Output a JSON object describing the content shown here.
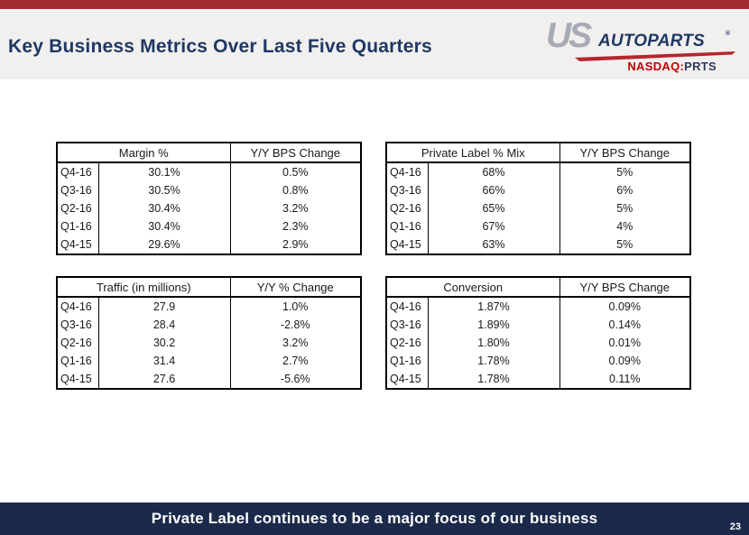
{
  "header": {
    "title": "Key Business Metrics Over Last Five Quarters"
  },
  "logo": {
    "us": "US",
    "autoparts": "AUTOPARTS",
    "reg": "®",
    "nasdaq_label": "NASDAQ:",
    "ticker": "PRTS"
  },
  "tables": [
    {
      "name": "margin",
      "metric_header": "Margin %",
      "change_header": "Y/Y BPS Change",
      "rows": [
        {
          "quarter": "Q4-16",
          "value": "30.1%",
          "change": "0.5%"
        },
        {
          "quarter": "Q3-16",
          "value": "30.5%",
          "change": "0.8%"
        },
        {
          "quarter": "Q2-16",
          "value": "30.4%",
          "change": "3.2%"
        },
        {
          "quarter": "Q1-16",
          "value": "30.4%",
          "change": "2.3%"
        },
        {
          "quarter": "Q4-15",
          "value": "29.6%",
          "change": "2.9%"
        }
      ]
    },
    {
      "name": "private-label-mix",
      "metric_header": "Private Label % Mix",
      "change_header": "Y/Y BPS Change",
      "rows": [
        {
          "quarter": "Q4-16",
          "value": "68%",
          "change": "5%"
        },
        {
          "quarter": "Q3-16",
          "value": "66%",
          "change": "6%"
        },
        {
          "quarter": "Q2-16",
          "value": "65%",
          "change": "5%"
        },
        {
          "quarter": "Q1-16",
          "value": "67%",
          "change": "4%"
        },
        {
          "quarter": "Q4-15",
          "value": "63%",
          "change": "5%"
        }
      ]
    },
    {
      "name": "traffic",
      "metric_header": "Traffic (in millions)",
      "change_header": "Y/Y % Change",
      "rows": [
        {
          "quarter": "Q4-16",
          "value": "27.9",
          "change": "1.0%"
        },
        {
          "quarter": "Q3-16",
          "value": "28.4",
          "change": "-2.8%"
        },
        {
          "quarter": "Q2-16",
          "value": "30.2",
          "change": "3.2%"
        },
        {
          "quarter": "Q1-16",
          "value": "31.4",
          "change": "2.7%"
        },
        {
          "quarter": "Q4-15",
          "value": "27.6",
          "change": "-5.6%"
        }
      ]
    },
    {
      "name": "conversion",
      "metric_header": "Conversion",
      "change_header": "Y/Y BPS Change",
      "rows": [
        {
          "quarter": "Q4-16",
          "value": "1.87%",
          "change": "0.09%"
        },
        {
          "quarter": "Q3-16",
          "value": "1.89%",
          "change": "0.14%"
        },
        {
          "quarter": "Q2-16",
          "value": "1.80%",
          "change": "0.01%"
        },
        {
          "quarter": "Q1-16",
          "value": "1.78%",
          "change": "0.09%"
        },
        {
          "quarter": "Q4-15",
          "value": "1.78%",
          "change": "0.11%"
        }
      ]
    }
  ],
  "footer": {
    "message": "Private Label continues to be a major focus of our business",
    "page_number": "23"
  },
  "colors": {
    "accent_red": "#a42a32",
    "header_band_gray": "#f1f0ef",
    "title_navy": "#1f3864",
    "footer_navy": "#1b2a4b",
    "logo_gray": "#a8abb6",
    "logo_navy": "#1f3864",
    "swoosh_red": "#b5272d",
    "nasdaq_red": "#c00000",
    "ticker_navy": "#2e3a5e",
    "table_border": "#000000",
    "table_text": "#1a1a1a"
  }
}
